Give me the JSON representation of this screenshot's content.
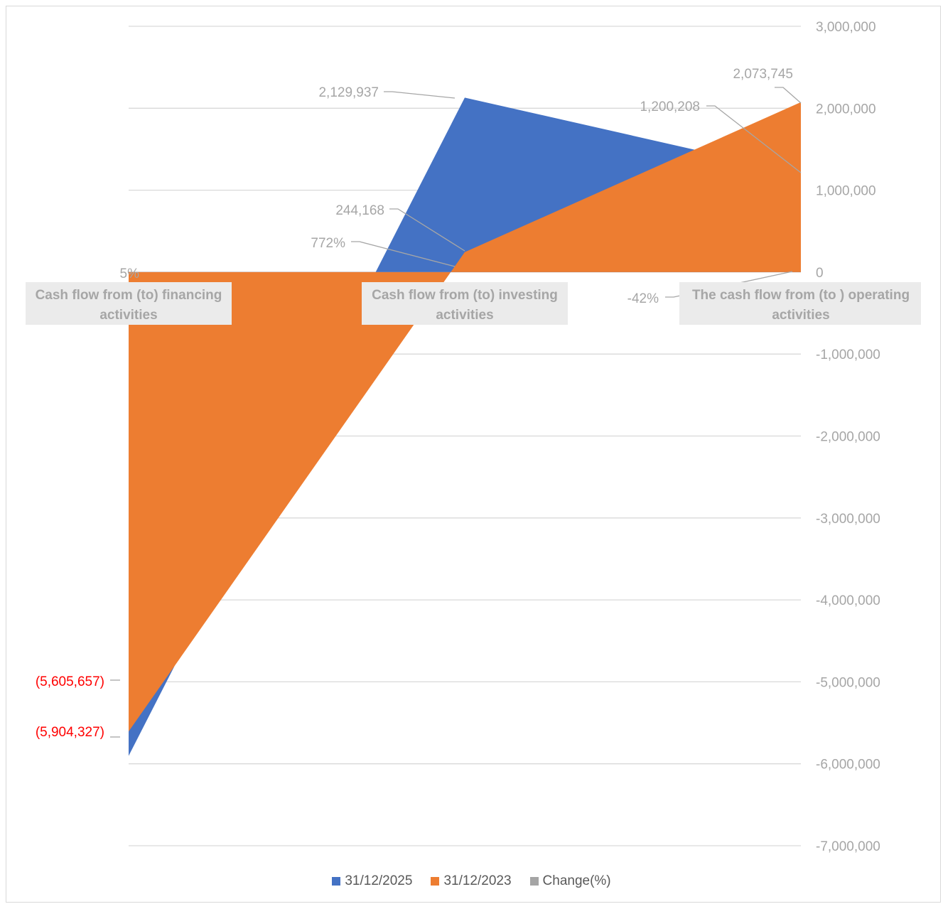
{
  "chart_data": {
    "type": "area",
    "categories": [
      "Cash flow from (to) financing activities",
      "Cash flow from (to) investing activities",
      "The cash flow from (to ) operating activities"
    ],
    "series": [
      {
        "name": "31/12/2025",
        "values": [
          -5904327,
          2129937,
          1200208
        ],
        "labels": [
          "(5,904,327)",
          "2,129,937",
          "1,200,208"
        ],
        "color": "#4472C4"
      },
      {
        "name": "31/12/2023",
        "values": [
          -5605657,
          244168,
          2073745
        ],
        "labels": [
          "(5,605,657)",
          "244,168",
          "2,073,745"
        ],
        "color": "#ED7D31"
      },
      {
        "name": "Change(%)",
        "values": [
          5,
          772,
          -42
        ],
        "labels": [
          "5%",
          "772%",
          "-42%"
        ],
        "color": "#A5A5A5"
      }
    ],
    "y_axis": {
      "min": -7000000,
      "max": 3000000,
      "step": 1000000,
      "tick_labels": [
        "3,000,000",
        "2,000,000",
        "1,000,000",
        "0",
        "-1,000,000",
        "-2,000,000",
        "-3,000,000",
        "-4,000,000",
        "-5,000,000",
        "-6,000,000",
        "-7,000,000"
      ],
      "position": "right"
    },
    "negative_label_color": "#FF0000",
    "label_color": "#A6A6A6",
    "grid": true,
    "legend_position": "bottom"
  }
}
